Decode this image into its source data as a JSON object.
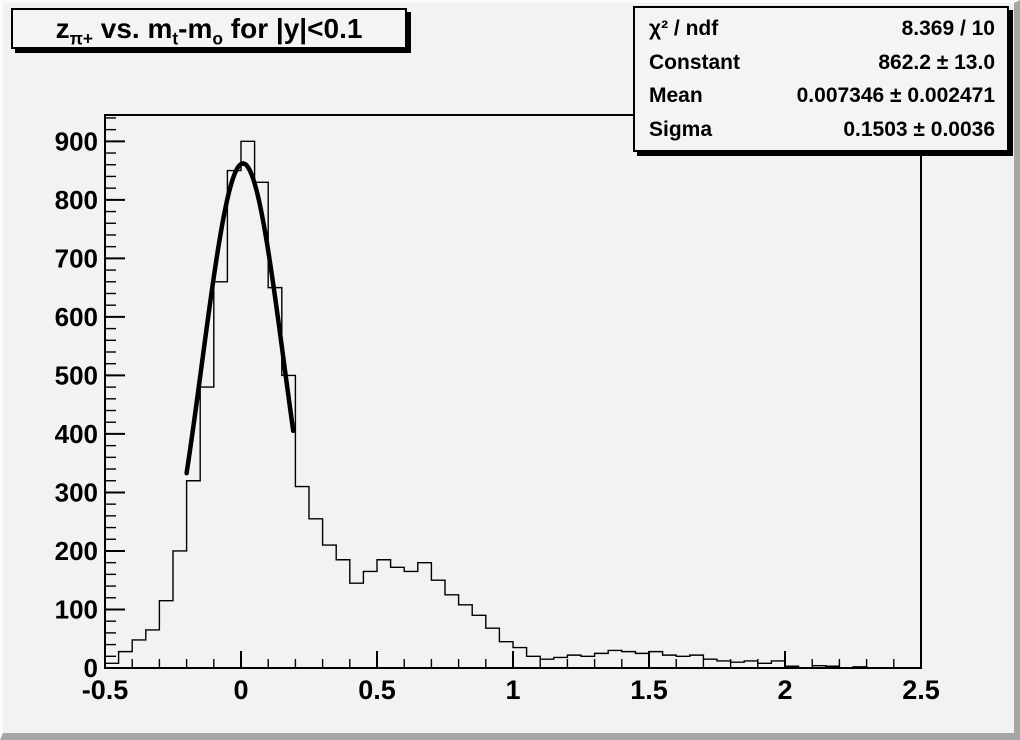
{
  "colors": {
    "canvas_background": "#f2f2f2",
    "box_background": "#f4f4f4",
    "line": "#000000",
    "bevel_dark": "#a6a6a6",
    "bevel_light": "#fbfbfb"
  },
  "title": {
    "text_plain": "z_pi+ vs. m_t-m_o for |y|<0.1",
    "parts": [
      {
        "t": "z"
      },
      {
        "t": "π+"
      },
      {
        "t": " vs. m"
      },
      {
        "t": "t"
      },
      {
        "t": "-m"
      },
      {
        "t": "o"
      },
      {
        "t": " for |y|<0.1"
      }
    ]
  },
  "stats": {
    "rows": [
      {
        "label": "χ² / ndf",
        "value": "8.369 / 10"
      },
      {
        "label": "Constant",
        "value": "862.2 ± 13.0"
      },
      {
        "label": "Mean",
        "value": "0.007346 ± 0.002471"
      },
      {
        "label": "Sigma",
        "value": "0.1503 ± 0.0036"
      }
    ]
  },
  "chart_data": {
    "type": "bar",
    "subtype": "histogram-step",
    "title": "z_pi+ vs. m_t-m_o for |y|<0.1",
    "xlabel": "",
    "ylabel": "",
    "xlim": [
      -0.5,
      2.5
    ],
    "ylim": [
      0,
      945
    ],
    "grid": false,
    "histogram": {
      "x_start": -0.5,
      "bin_width": 0.05,
      "counts": [
        8,
        28,
        48,
        65,
        115,
        200,
        320,
        480,
        660,
        850,
        900,
        830,
        650,
        500,
        310,
        255,
        210,
        185,
        145,
        165,
        185,
        172,
        165,
        180,
        150,
        125,
        108,
        90,
        68,
        45,
        35,
        20,
        15,
        18,
        22,
        20,
        25,
        30,
        28,
        25,
        28,
        22,
        20,
        22,
        15,
        12,
        10,
        12,
        8,
        12,
        3,
        0,
        4,
        3,
        0,
        2,
        0,
        0,
        0,
        0
      ]
    },
    "fit_curve": {
      "type": "gaussian",
      "constant": 862.2,
      "mean": 0.007346,
      "sigma": 0.1503,
      "range_x": [
        -0.2,
        0.195
      ]
    },
    "x_ticks": {
      "values": [
        -0.5,
        0,
        0.5,
        1,
        1.5,
        2,
        2.5
      ],
      "labels": [
        "-0.5",
        "0",
        "0.5",
        "1",
        "1.5",
        "2",
        "2.5"
      ],
      "minor_step": 0.1
    },
    "y_ticks": {
      "values": [
        0,
        100,
        200,
        300,
        400,
        500,
        600,
        700,
        800,
        900
      ],
      "labels": [
        "0",
        "100",
        "200",
        "300",
        "400",
        "500",
        "600",
        "700",
        "800",
        "900"
      ],
      "minor_step": 20
    }
  }
}
